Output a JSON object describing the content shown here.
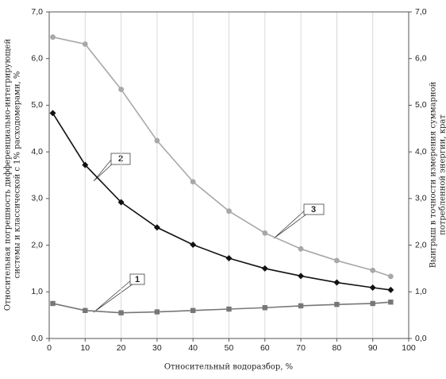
{
  "chart_data": {
    "type": "line",
    "x_label": "Относительный водоразбор, %",
    "y_label": [
      "Относительная погрешность дифференциально-интегрирующей",
      "системы и классической с 1% расходомерами, %"
    ],
    "y2_label": [
      "Выигрыш в точности измерения суммарной",
      "потребленной энергии, крат"
    ],
    "xlim": [
      0,
      100
    ],
    "xticks": [
      0,
      10,
      20,
      30,
      40,
      50,
      60,
      70,
      80,
      90,
      100
    ],
    "ylim": [
      0,
      7
    ],
    "yticks": [
      {
        "value": 0,
        "label": "0,0"
      },
      {
        "value": 1,
        "label": "1,0"
      },
      {
        "value": 2,
        "label": "2,0"
      },
      {
        "value": 3,
        "label": "3,0"
      },
      {
        "value": 4,
        "label": "4,0"
      },
      {
        "value": 5,
        "label": "5,0"
      },
      {
        "value": 6,
        "label": "6,0"
      },
      {
        "value": 7,
        "label": "7,0"
      }
    ],
    "y2lim": [
      0,
      7
    ],
    "y2ticks": [
      {
        "value": 0,
        "label": "0,0"
      },
      {
        "value": 1,
        "label": "1,0"
      },
      {
        "value": 2,
        "label": "2,0"
      },
      {
        "value": 3,
        "label": "3,0"
      },
      {
        "value": 4,
        "label": "4,0"
      },
      {
        "value": 5,
        "label": "5,0"
      },
      {
        "value": 6,
        "label": "6,0"
      },
      {
        "value": 7,
        "label": "7,0"
      }
    ],
    "grid": "x",
    "x": [
      1,
      10,
      20,
      30,
      40,
      50,
      60,
      70,
      80,
      90,
      95
    ],
    "series": [
      {
        "name": "1",
        "color": "#777777",
        "marker": "square",
        "values": [
          0.75,
          0.6,
          0.55,
          0.57,
          0.6,
          0.63,
          0.66,
          0.7,
          0.73,
          0.75,
          0.78
        ]
      },
      {
        "name": "2",
        "color": "#111111",
        "marker": "diamond",
        "values": [
          4.83,
          3.72,
          2.92,
          2.38,
          2.01,
          1.72,
          1.5,
          1.34,
          1.2,
          1.09,
          1.04
        ]
      },
      {
        "name": "3",
        "color": "#a8a8a8",
        "marker": "circle",
        "axis": "y2",
        "values": [
          6.46,
          6.31,
          5.34,
          4.24,
          3.36,
          2.73,
          2.26,
          1.92,
          1.67,
          1.46,
          1.33
        ]
      }
    ]
  }
}
